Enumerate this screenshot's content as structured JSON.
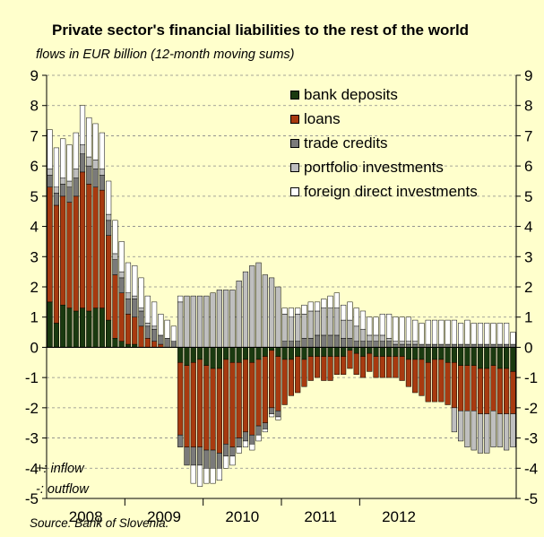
{
  "chart_data": {
    "type": "bar",
    "stacked": true,
    "title": "Private sector's financial liabilities to the rest of the world",
    "subtitle": "flows in EUR billion (12-month moving sums)",
    "source": "Source: Bank of Slovenia.",
    "annotations": [
      "+: inflow",
      "-: outflow"
    ],
    "ylim": [
      -5,
      9
    ],
    "yticks": [
      -5,
      -4,
      -3,
      -2,
      -1,
      0,
      1,
      2,
      3,
      4,
      5,
      6,
      7,
      8,
      9
    ],
    "ytick_labels": [
      "-5",
      "-4",
      "-3",
      "-2",
      "-1",
      "0",
      "1",
      "2",
      "3",
      "4",
      "5",
      "6",
      "7",
      "8",
      "9"
    ],
    "year_labels": [
      "2008",
      "2009",
      "2010",
      "2011",
      "2012"
    ],
    "months_per_year": 12,
    "grid": true,
    "legend_position": "top-right",
    "series": [
      {
        "name": "bank deposits",
        "color": "#1a3a10",
        "values": [
          1.5,
          0.8,
          1.4,
          1.3,
          1.2,
          1.3,
          1.2,
          1.3,
          1.3,
          0.9,
          0.3,
          0.2,
          0.1,
          0.1,
          0,
          0,
          0,
          0,
          0,
          0,
          -0.5,
          -0.6,
          -0.5,
          -0.4,
          -0.6,
          -0.7,
          -0.7,
          -0.4,
          -0.5,
          -0.5,
          -0.4,
          -0.5,
          -0.4,
          -0.3,
          -0.1,
          -0.3,
          -0.4,
          -0.4,
          -0.3,
          -0.4,
          -0.3,
          -0.3,
          -0.3,
          -0.3,
          -0.3,
          -0.3,
          -0.1,
          -0.2,
          -0.3,
          -0.2,
          -0.3,
          -0.3,
          -0.3,
          -0.3,
          -0.3,
          -0.4,
          -0.4,
          -0.4,
          -0.5,
          -0.4,
          -0.4,
          -0.5,
          -0.5,
          -0.6,
          -0.6,
          -0.6,
          -0.7,
          -0.7,
          -0.6,
          -0.7,
          -0.7,
          -0.8
        ]
      },
      {
        "name": "loans",
        "color": "#a83a10",
        "values": [
          3.8,
          3.9,
          3.6,
          3.5,
          3.8,
          4.5,
          4.2,
          4.0,
          3.9,
          2.8,
          2.1,
          1.6,
          1.0,
          0.9,
          0.7,
          0.3,
          0.2,
          0.1,
          0,
          0,
          -2.4,
          -2.7,
          -2.8,
          -2.9,
          -2.8,
          -2.7,
          -2.8,
          -2.8,
          -2.8,
          -2.5,
          -2.4,
          -2.4,
          -2.2,
          -2.2,
          -1.9,
          -1.8,
          -1.5,
          -1.2,
          -1.2,
          -0.9,
          -0.8,
          -0.7,
          -0.8,
          -0.8,
          -0.6,
          -0.6,
          -0.6,
          -0.7,
          -0.7,
          -0.6,
          -0.7,
          -0.7,
          -0.7,
          -0.7,
          -0.8,
          -0.9,
          -1.1,
          -1.2,
          -1.3,
          -1.4,
          -1.4,
          -1.4,
          -1.5,
          -1.5,
          -1.5,
          -1.5,
          -1.5,
          -1.5,
          -1.5,
          -1.5,
          -1.5,
          -1.4
        ]
      },
      {
        "name": "trade credits",
        "color": "#7a7a7a",
        "values": [
          0.4,
          0.4,
          0.4,
          0.5,
          0.6,
          0.6,
          0.6,
          0.6,
          0.5,
          0.5,
          0.5,
          0.5,
          0.5,
          0.6,
          0.5,
          0.4,
          0.4,
          0.3,
          0.3,
          0.2,
          -0.4,
          -0.6,
          -0.6,
          -0.6,
          -0.6,
          -0.6,
          -0.5,
          -0.4,
          -0.3,
          -0.3,
          -0.3,
          -0.3,
          -0.3,
          -0.2,
          -0.2,
          -0.2,
          0.2,
          0.2,
          0.2,
          0.3,
          0.3,
          0.4,
          0.4,
          0.4,
          0.4,
          0.3,
          0.3,
          0.2,
          0.2,
          0.2,
          0.2,
          0.2,
          0.2,
          0.1,
          0.1,
          0.1,
          0.1,
          0.1,
          0.1,
          0.1,
          0.1,
          0.1,
          0.1,
          0.1,
          0.1,
          0.1,
          0.1,
          0.1,
          0.1,
          0.1,
          0.1,
          0.1
        ]
      },
      {
        "name": "portfolio investments",
        "color": "#bfbfbf",
        "values": [
          0.2,
          0.2,
          0.2,
          0.2,
          0.3,
          0.3,
          0.3,
          0.3,
          0.2,
          0.2,
          0.2,
          0.2,
          0.2,
          0.1,
          0.1,
          0.1,
          0.1,
          0,
          0,
          0,
          1.5,
          1.7,
          1.7,
          1.7,
          1.7,
          1.8,
          1.9,
          1.9,
          1.9,
          2.2,
          2.5,
          2.7,
          2.8,
          2.4,
          2.3,
          2.0,
          0.9,
          0.8,
          0.9,
          0.8,
          0.9,
          0.8,
          0.9,
          0.9,
          0.9,
          0.6,
          0.6,
          0.5,
          0.4,
          0.2,
          0.2,
          0.2,
          0.1,
          0.1,
          0.1,
          0.1,
          0.1,
          0,
          0,
          0,
          0,
          0,
          -0.8,
          -1.0,
          -1.2,
          -1.3,
          -1.3,
          -1.3,
          -1.2,
          -1.1,
          -1.2,
          -1.1
        ]
      },
      {
        "name": "foreign direct investments",
        "color": "#ffffff",
        "values": [
          1.3,
          1.3,
          1.3,
          1.2,
          1.2,
          1.3,
          1.3,
          1.2,
          1.2,
          1.1,
          1.1,
          1.0,
          1.0,
          1.0,
          1.0,
          0.9,
          0.8,
          0.7,
          0.6,
          0.5,
          0.2,
          0,
          -0.6,
          -0.7,
          -0.5,
          -0.5,
          -0.4,
          -0.4,
          -0.3,
          -0.2,
          -0.2,
          -0.2,
          -0.2,
          -0.1,
          -0.1,
          -0.1,
          0.2,
          0.3,
          0.2,
          0.3,
          0.3,
          0.3,
          0.3,
          0.4,
          0.5,
          0.5,
          0.6,
          0.6,
          0.6,
          0.6,
          0.6,
          0.7,
          0.8,
          0.8,
          0.8,
          0.8,
          0.7,
          0.7,
          0.8,
          0.8,
          0.8,
          0.8,
          0.8,
          0.7,
          0.8,
          0.7,
          0.7,
          0.7,
          0.7,
          0.7,
          0.7,
          0.4
        ]
      }
    ]
  }
}
